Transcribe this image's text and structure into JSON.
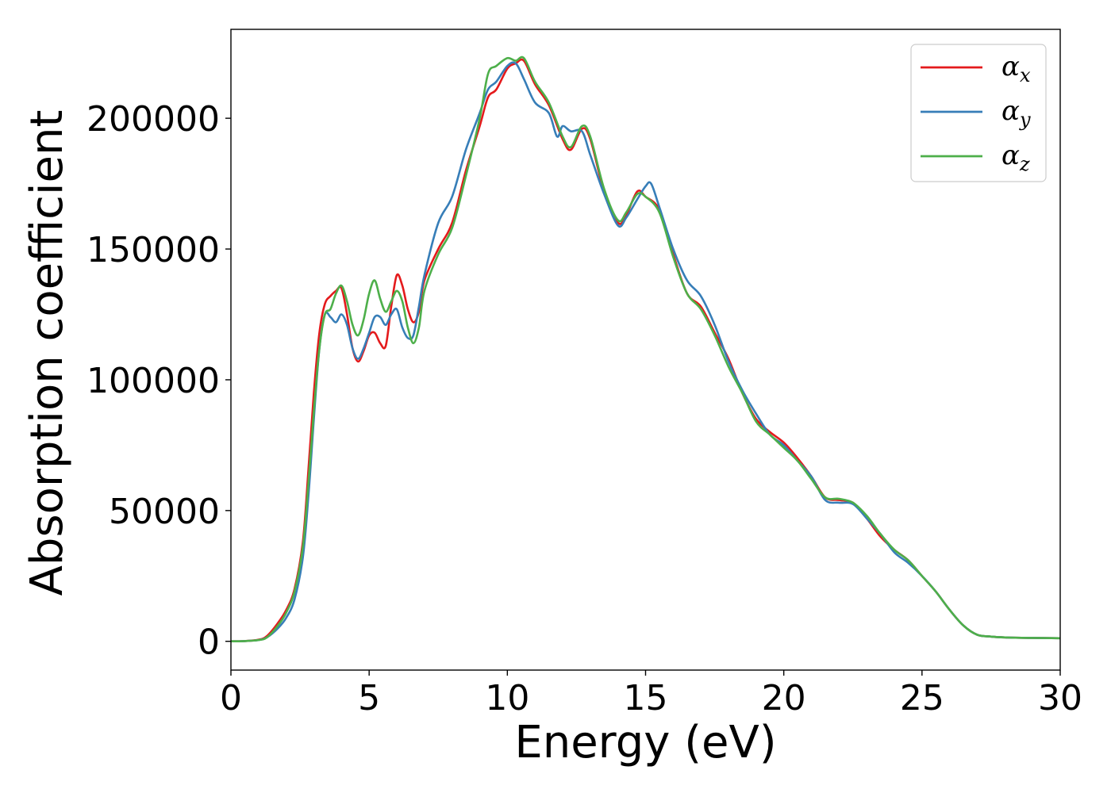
{
  "chart_data": {
    "type": "line",
    "xlabel": "Energy (eV)",
    "ylabel": "Absorption coefficient",
    "xlim": [
      0,
      30
    ],
    "ylim": [
      -11000,
      234000
    ],
    "xticks": [
      0,
      5,
      10,
      15,
      20,
      25,
      30
    ],
    "yticks": [
      0,
      50000,
      100000,
      150000,
      200000
    ],
    "grid": false,
    "legend_position": "top-right",
    "series": [
      {
        "name": "α",
        "subscript": "x",
        "color": "#e41a1c",
        "points": [
          [
            0,
            0
          ],
          [
            0.5,
            100
          ],
          [
            1,
            600
          ],
          [
            1.3,
            2000
          ],
          [
            1.7,
            7000
          ],
          [
            2,
            12000
          ],
          [
            2.3,
            20000
          ],
          [
            2.6,
            38000
          ],
          [
            2.8,
            65000
          ],
          [
            3,
            95000
          ],
          [
            3.2,
            118000
          ],
          [
            3.4,
            129000
          ],
          [
            3.6,
            132000
          ],
          [
            3.8,
            134000
          ],
          [
            4,
            135000
          ],
          [
            4.2,
            125000
          ],
          [
            4.4,
            112000
          ],
          [
            4.6,
            107000
          ],
          [
            4.8,
            111000
          ],
          [
            5,
            117000
          ],
          [
            5.2,
            118000
          ],
          [
            5.4,
            114000
          ],
          [
            5.6,
            113000
          ],
          [
            5.8,
            128000
          ],
          [
            6,
            140000
          ],
          [
            6.2,
            136000
          ],
          [
            6.4,
            127000
          ],
          [
            6.6,
            122000
          ],
          [
            6.8,
            126000
          ],
          [
            7,
            138000
          ],
          [
            7.5,
            150000
          ],
          [
            8,
            160000
          ],
          [
            8.5,
            180000
          ],
          [
            9,
            197000
          ],
          [
            9.3,
            208000
          ],
          [
            9.6,
            211000
          ],
          [
            10,
            219000
          ],
          [
            10.3,
            221000
          ],
          [
            10.6,
            222000
          ],
          [
            11,
            213000
          ],
          [
            11.5,
            205000
          ],
          [
            12,
            192000
          ],
          [
            12.3,
            188000
          ],
          [
            12.7,
            196000
          ],
          [
            13,
            192000
          ],
          [
            13.5,
            172000
          ],
          [
            14,
            160000
          ],
          [
            14.3,
            163000
          ],
          [
            14.7,
            172000
          ],
          [
            15,
            170000
          ],
          [
            15.5,
            165000
          ],
          [
            16,
            148000
          ],
          [
            16.5,
            133000
          ],
          [
            17,
            128000
          ],
          [
            17.5,
            118000
          ],
          [
            18,
            108000
          ],
          [
            18.5,
            95000
          ],
          [
            19,
            85000
          ],
          [
            19.5,
            80000
          ],
          [
            20,
            76000
          ],
          [
            20.5,
            70000
          ],
          [
            21,
            63000
          ],
          [
            21.5,
            55000
          ],
          [
            22,
            54000
          ],
          [
            22.5,
            53000
          ],
          [
            23,
            47000
          ],
          [
            23.5,
            40000
          ],
          [
            24,
            35000
          ],
          [
            24.5,
            31000
          ],
          [
            25,
            25000
          ],
          [
            25.5,
            19000
          ],
          [
            26,
            12000
          ],
          [
            26.5,
            6000
          ],
          [
            27,
            2500
          ],
          [
            27.5,
            1800
          ],
          [
            28,
            1500
          ],
          [
            29,
            1300
          ],
          [
            30,
            1200
          ]
        ]
      },
      {
        "name": "α",
        "subscript": "y",
        "color": "#377eb8",
        "points": [
          [
            0,
            0
          ],
          [
            0.5,
            100
          ],
          [
            1,
            500
          ],
          [
            1.3,
            1500
          ],
          [
            1.7,
            5000
          ],
          [
            2,
            9000
          ],
          [
            2.3,
            16000
          ],
          [
            2.6,
            32000
          ],
          [
            2.8,
            55000
          ],
          [
            3,
            85000
          ],
          [
            3.2,
            112000
          ],
          [
            3.4,
            125000
          ],
          [
            3.6,
            124000
          ],
          [
            3.8,
            122000
          ],
          [
            4,
            125000
          ],
          [
            4.2,
            121000
          ],
          [
            4.4,
            112000
          ],
          [
            4.6,
            108000
          ],
          [
            4.8,
            112000
          ],
          [
            5,
            118000
          ],
          [
            5.2,
            124000
          ],
          [
            5.4,
            124000
          ],
          [
            5.6,
            121000
          ],
          [
            5.8,
            125000
          ],
          [
            6,
            127000
          ],
          [
            6.2,
            120000
          ],
          [
            6.4,
            116000
          ],
          [
            6.6,
            117000
          ],
          [
            6.8,
            128000
          ],
          [
            7,
            140000
          ],
          [
            7.5,
            160000
          ],
          [
            8,
            170000
          ],
          [
            8.5,
            188000
          ],
          [
            9,
            202000
          ],
          [
            9.3,
            211000
          ],
          [
            9.6,
            214000
          ],
          [
            10,
            220000
          ],
          [
            10.3,
            221000
          ],
          [
            10.6,
            215000
          ],
          [
            11,
            206000
          ],
          [
            11.5,
            202000
          ],
          [
            11.8,
            193000
          ],
          [
            12,
            197000
          ],
          [
            12.3,
            195000
          ],
          [
            12.7,
            195000
          ],
          [
            13,
            186000
          ],
          [
            13.5,
            171000
          ],
          [
            14,
            159000
          ],
          [
            14.3,
            162000
          ],
          [
            14.7,
            169000
          ],
          [
            15,
            174000
          ],
          [
            15.2,
            175000
          ],
          [
            15.5,
            166000
          ],
          [
            16,
            150000
          ],
          [
            16.5,
            138000
          ],
          [
            17,
            132000
          ],
          [
            17.5,
            121000
          ],
          [
            18,
            107000
          ],
          [
            18.5,
            96000
          ],
          [
            19,
            87000
          ],
          [
            19.5,
            79000
          ],
          [
            20,
            75000
          ],
          [
            20.5,
            69000
          ],
          [
            21,
            63000
          ],
          [
            21.5,
            54000
          ],
          [
            22,
            53000
          ],
          [
            22.5,
            52500
          ],
          [
            23,
            47000
          ],
          [
            23.5,
            41000
          ],
          [
            24,
            34000
          ],
          [
            24.5,
            30000
          ],
          [
            25,
            25000
          ],
          [
            25.5,
            19000
          ],
          [
            26,
            12000
          ],
          [
            26.5,
            6000
          ],
          [
            27,
            2500
          ],
          [
            27.5,
            1800
          ],
          [
            28,
            1500
          ],
          [
            29,
            1300
          ],
          [
            30,
            1200
          ]
        ]
      },
      {
        "name": "α",
        "subscript": "z",
        "color": "#4daf4a",
        "points": [
          [
            0,
            0
          ],
          [
            0.5,
            100
          ],
          [
            1,
            500
          ],
          [
            1.3,
            1500
          ],
          [
            1.7,
            6000
          ],
          [
            2,
            11000
          ],
          [
            2.3,
            19000
          ],
          [
            2.6,
            36000
          ],
          [
            2.8,
            60000
          ],
          [
            3,
            88000
          ],
          [
            3.2,
            112000
          ],
          [
            3.4,
            125000
          ],
          [
            3.6,
            127000
          ],
          [
            3.8,
            133000
          ],
          [
            4,
            136000
          ],
          [
            4.2,
            130000
          ],
          [
            4.4,
            121000
          ],
          [
            4.6,
            117000
          ],
          [
            4.8,
            123000
          ],
          [
            5,
            133000
          ],
          [
            5.2,
            138000
          ],
          [
            5.4,
            131000
          ],
          [
            5.6,
            126000
          ],
          [
            5.8,
            130000
          ],
          [
            6,
            134000
          ],
          [
            6.2,
            130000
          ],
          [
            6.4,
            120000
          ],
          [
            6.6,
            114000
          ],
          [
            6.8,
            120000
          ],
          [
            7,
            134000
          ],
          [
            7.5,
            148000
          ],
          [
            8,
            158000
          ],
          [
            8.5,
            178000
          ],
          [
            9,
            200000
          ],
          [
            9.3,
            217000
          ],
          [
            9.6,
            220000
          ],
          [
            10,
            223000
          ],
          [
            10.3,
            222000
          ],
          [
            10.6,
            223000
          ],
          [
            11,
            214000
          ],
          [
            11.5,
            206000
          ],
          [
            12,
            193000
          ],
          [
            12.3,
            189000
          ],
          [
            12.7,
            197000
          ],
          [
            13,
            193000
          ],
          [
            13.5,
            173000
          ],
          [
            14,
            161000
          ],
          [
            14.3,
            164000
          ],
          [
            14.7,
            171000
          ],
          [
            15,
            170000
          ],
          [
            15.5,
            164000
          ],
          [
            16,
            147000
          ],
          [
            16.5,
            133000
          ],
          [
            17,
            127000
          ],
          [
            17.5,
            117000
          ],
          [
            18,
            105000
          ],
          [
            18.5,
            95000
          ],
          [
            19,
            84000
          ],
          [
            19.5,
            79000
          ],
          [
            20,
            74000
          ],
          [
            20.5,
            69000
          ],
          [
            21,
            62000
          ],
          [
            21.5,
            55000
          ],
          [
            22,
            54500
          ],
          [
            22.5,
            53000
          ],
          [
            23,
            48000
          ],
          [
            23.5,
            41000
          ],
          [
            24,
            35000
          ],
          [
            24.5,
            31000
          ],
          [
            25,
            25000
          ],
          [
            25.5,
            19000
          ],
          [
            26,
            12000
          ],
          [
            26.5,
            6000
          ],
          [
            27,
            2500
          ],
          [
            27.5,
            1800
          ],
          [
            28,
            1500
          ],
          [
            29,
            1300
          ],
          [
            30,
            1200
          ]
        ]
      }
    ]
  }
}
